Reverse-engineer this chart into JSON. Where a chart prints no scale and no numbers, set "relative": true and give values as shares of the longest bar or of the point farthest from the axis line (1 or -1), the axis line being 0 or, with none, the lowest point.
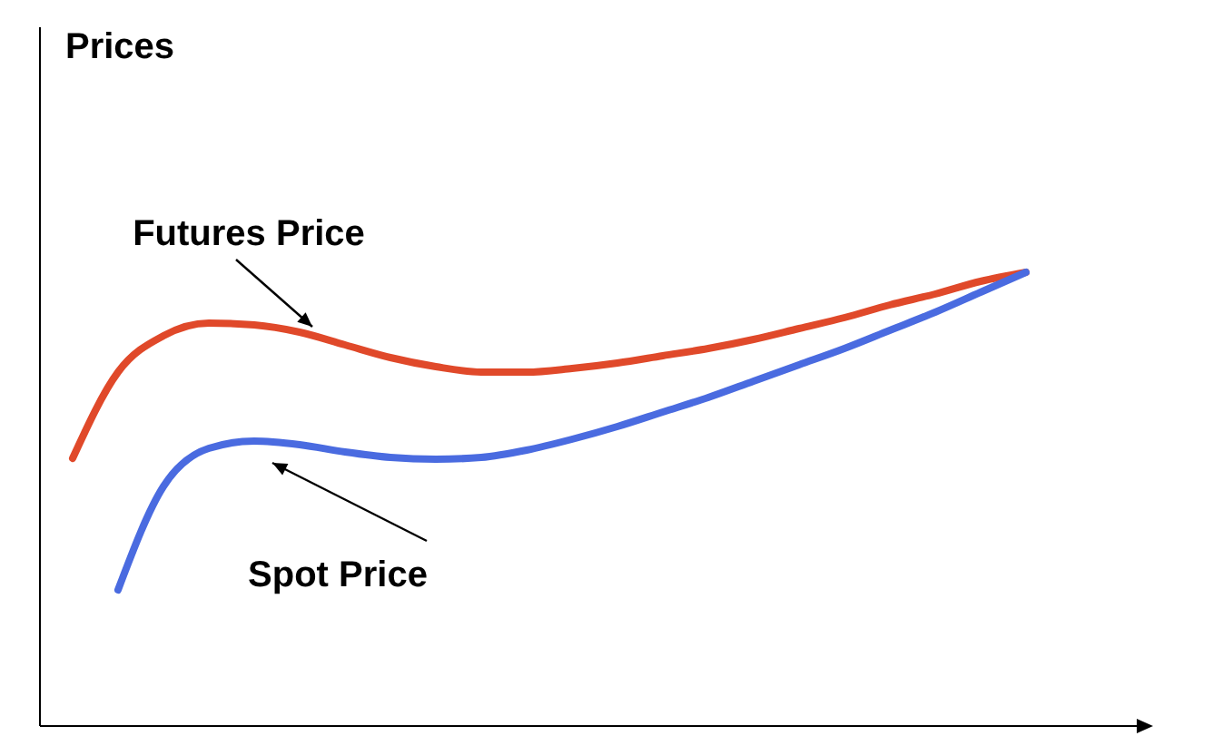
{
  "chart_data": {
    "type": "line",
    "relative": true,
    "annotations": [
      "Prices"
    ],
    "marker": "none",
    "line_style": "solid",
    "categories": [
      null,
      null,
      null,
      null,
      null,
      null,
      null,
      null,
      null,
      null,
      null,
      null,
      null,
      null,
      null,
      null,
      null,
      null,
      null,
      null,
      null,
      null
    ],
    "series": [
      {
        "name": "Futures Price",
        "color": "#e0492a",
        "values": [
          0.59,
          0.78,
          0.86,
          0.888,
          0.884,
          0.868,
          0.84,
          0.812,
          0.792,
          0.78,
          0.78,
          0.788,
          0.8,
          0.816,
          0.832,
          0.852,
          0.876,
          0.9,
          0.928,
          0.952,
          0.98,
          1
        ]
      },
      {
        "name": "Spot Price",
        "color": "#4a6be0",
        "values": [
          null,
          0.3,
          0.528,
          0.612,
          0.628,
          0.62,
          0.604,
          0.592,
          0.588,
          0.592,
          0.608,
          0.632,
          0.66,
          0.692,
          0.724,
          0.76,
          0.796,
          0.832,
          0.872,
          0.912,
          0.956,
          1
        ]
      }
    ]
  }
}
